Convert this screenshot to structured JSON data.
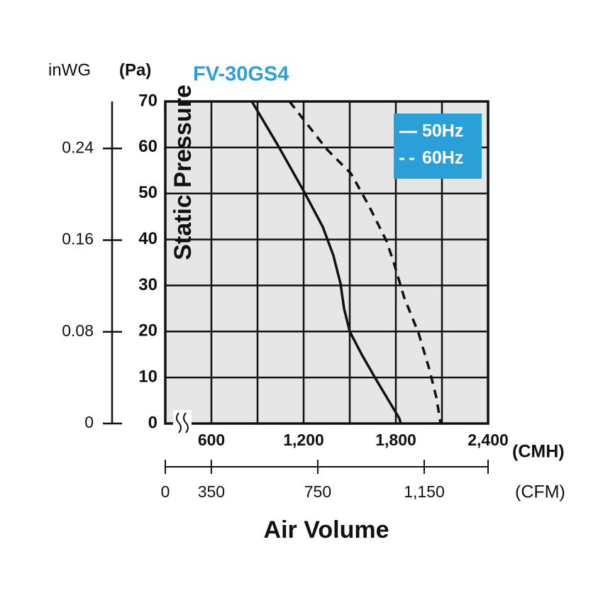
{
  "chart_data": {
    "type": "line",
    "title": "FV-30GS4",
    "y_label": "Static Pressure",
    "y_unit_label": "(Pa)",
    "y2_unit_label": "inWG",
    "x_label": "Air Volume",
    "x_unit_label": "(CMH)",
    "x2_unit_label": "(CFM)",
    "xlim": [
      300,
      2400
    ],
    "xticks": [
      600,
      {
        "value": 1200,
        "label": "1,200"
      },
      {
        "value": 1800,
        "label": "1,800"
      },
      {
        "value": 2400,
        "label": "2,400"
      }
    ],
    "xgrid": [
      300,
      600,
      900,
      1200,
      1500,
      1800,
      2100,
      2400
    ],
    "ylim": [
      0,
      70
    ],
    "yticks": [
      0,
      10,
      20,
      30,
      40,
      50,
      60,
      70
    ],
    "y2lim": [
      0,
      0.281
    ],
    "y2ticks": [
      0,
      0.08,
      0.16,
      0.24
    ],
    "x2lim": [
      177,
      1390
    ],
    "x2ticks": [
      0,
      350,
      750,
      {
        "value": 1150,
        "label": "1,150"
      }
    ],
    "grid": true,
    "legend": "top-right",
    "legend_color": "#2a9fd8",
    "title_color": "#2a9fd8",
    "series": [
      {
        "name": "50Hz",
        "color": "#111111",
        "dashed": false,
        "x": [
          863,
          1034,
          1209,
          1325,
          1394,
          1440,
          1463,
          1500,
          1578,
          1671,
          1823,
          1832
        ],
        "values": [
          70,
          60.4,
          50,
          42.7,
          36.5,
          30.4,
          25,
          20,
          15,
          9.6,
          1.1,
          0
        ]
      },
      {
        "name": "60Hz",
        "color": "#111111",
        "dashed": true,
        "x": [
          1108,
          1348,
          1509,
          1625,
          1740,
          1786,
          1855,
          1948,
          2017,
          2063,
          2086,
          2091
        ],
        "values": [
          70,
          59.7,
          54.3,
          47.3,
          39.6,
          35,
          27.3,
          19.6,
          11.9,
          5.7,
          1.1,
          0
        ]
      }
    ]
  }
}
